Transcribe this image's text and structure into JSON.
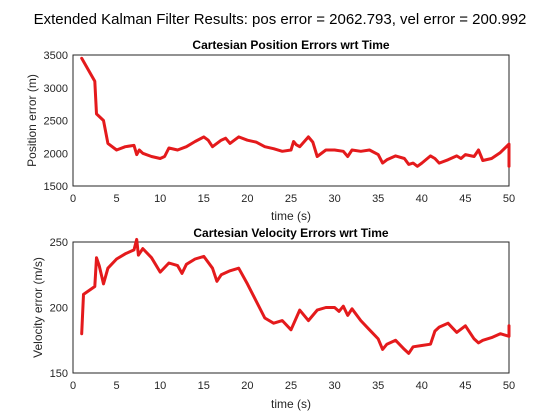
{
  "figure": {
    "suptitle": "Extended Kalman Filter Results: pos error = 2062.793, vel error = 200.992"
  },
  "colors": {
    "series": "#e41a1c",
    "axes": "#262626",
    "grid": "#dcdcdc",
    "background": "#ffffff"
  },
  "chart_data": [
    {
      "type": "line",
      "title": "Cartesian Position Errors wrt Time",
      "xlabel": "time (s)",
      "ylabel": "Position error (m)",
      "xlim": [
        0,
        50
      ],
      "ylim": [
        1500,
        3500
      ],
      "xticks": [
        0,
        5,
        10,
        15,
        20,
        25,
        30,
        35,
        40,
        45,
        50
      ],
      "yticks": [
        1500,
        2000,
        2500,
        3000,
        3500
      ],
      "grid": true,
      "series": [
        {
          "x": [
            1,
            2.5,
            2.7,
            3.5,
            4,
            5,
            6,
            7,
            7.3,
            7.6,
            8,
            9,
            10,
            10.5,
            11,
            12,
            13,
            14,
            15,
            15.5,
            16,
            17,
            17.5,
            18,
            18.5,
            19,
            20,
            21,
            22,
            23,
            24,
            25,
            25.3,
            25.6,
            26,
            27,
            27.5,
            28,
            29,
            30,
            31,
            31.5,
            32,
            33,
            34,
            35,
            35.5,
            36,
            37,
            38,
            38.5,
            39,
            39.5,
            40,
            41,
            41.5,
            42,
            43,
            44,
            44.5,
            45,
            46,
            46.5,
            47,
            48,
            49,
            50,
            50
          ],
          "y": [
            3450,
            3100,
            2600,
            2500,
            2150,
            2050,
            2100,
            2120,
            1980,
            2050,
            2000,
            1950,
            1920,
            1950,
            2080,
            2050,
            2100,
            2180,
            2250,
            2200,
            2100,
            2200,
            2230,
            2150,
            2200,
            2250,
            2200,
            2170,
            2100,
            2070,
            2030,
            2050,
            2180,
            2130,
            2100,
            2250,
            2170,
            1950,
            2050,
            2050,
            2030,
            1950,
            2050,
            2030,
            2050,
            1980,
            1850,
            1900,
            1960,
            1920,
            1830,
            1850,
            1800,
            1850,
            1960,
            1920,
            1850,
            1900,
            1960,
            1920,
            1980,
            1950,
            2050,
            1890,
            1920,
            2010,
            2140,
            1800
          ]
        }
      ]
    },
    {
      "type": "line",
      "title": "Cartesian Velocity Errors wrt Time",
      "xlabel": "time (s)",
      "ylabel": "Velocity error (m/s)",
      "xlim": [
        0,
        50
      ],
      "ylim": [
        150,
        250
      ],
      "xticks": [
        0,
        5,
        10,
        15,
        20,
        25,
        30,
        35,
        40,
        45,
        50
      ],
      "yticks": [
        150,
        200,
        250
      ],
      "grid": true,
      "series": [
        {
          "x": [
            1,
            1.2,
            2.5,
            2.7,
            3,
            3.5,
            4,
            5,
            6,
            7,
            7.3,
            7.5,
            8,
            9,
            10,
            11,
            12,
            12.5,
            13,
            14,
            15,
            16,
            16.5,
            17,
            18,
            19,
            20,
            21,
            22,
            23,
            24,
            25,
            26,
            27,
            28,
            29,
            30,
            30.5,
            31,
            31.5,
            32,
            33,
            34,
            35,
            35.5,
            36,
            37,
            38,
            38.5,
            39,
            40,
            41,
            41.5,
            42,
            43,
            44,
            45,
            46,
            46.5,
            47,
            48,
            49,
            50,
            50
          ],
          "y": [
            180,
            210,
            216,
            238,
            232,
            218,
            230,
            237,
            241,
            244,
            252,
            240,
            245,
            238,
            227,
            234,
            232,
            226,
            233,
            237,
            239,
            230,
            220,
            225,
            228,
            230,
            218,
            205,
            192,
            188,
            190,
            183,
            198,
            190,
            198,
            200,
            200,
            197,
            201,
            194,
            199,
            190,
            183,
            176,
            168,
            172,
            175,
            168,
            165,
            170,
            171,
            172,
            182,
            185,
            188,
            181,
            186,
            176,
            173,
            175,
            177,
            180,
            178,
            186
          ]
        }
      ]
    }
  ]
}
